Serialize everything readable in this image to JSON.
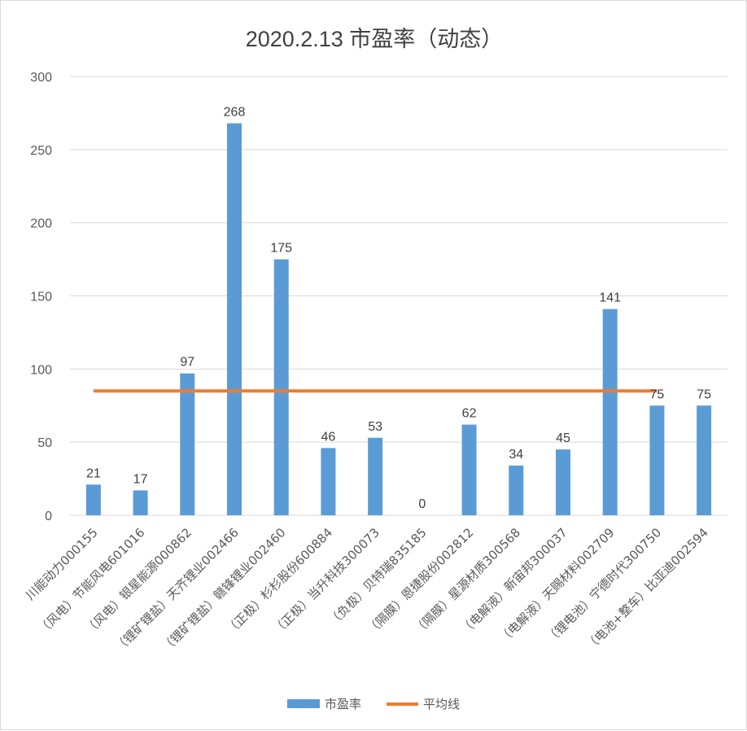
{
  "chart_data": {
    "type": "bar",
    "title": "2020.2.13 市盈率（动态）",
    "categories": [
      "川能动力000155",
      "（风电）节能风电601016",
      "（风电）银星能源000862",
      "（锂矿锂盐）天齐锂业002466",
      "（锂矿锂盐）赣锋锂业002460",
      "（正极）杉杉股份600884",
      "（正极）当升科技300073",
      "（负极）贝特瑞835185",
      "（隔膜）恩捷股份002812",
      "（隔膜）星源材质300568",
      "（电解液）新宙邦300037",
      "（电解液）天赐材料002709",
      "（锂电池）宁德时代300750",
      "（电池+整车）比亚迪002594"
    ],
    "series": [
      {
        "name": "市盈率",
        "type": "bar",
        "color": "#5b9bd5",
        "values": [
          21,
          17,
          97,
          268,
          175,
          46,
          53,
          0,
          62,
          34,
          45,
          141,
          75,
          75
        ],
        "data_labels": [
          "21",
          "17",
          "97",
          "268",
          "175",
          "46",
          "53",
          "0",
          "62",
          "34",
          "45",
          "141",
          "75",
          "75"
        ]
      },
      {
        "name": "平均线",
        "type": "line",
        "color": "#ed7d31",
        "value": 85,
        "x_range": [
          "川能动力000155",
          "（锂电池）宁德时代300750"
        ]
      }
    ],
    "ylim": [
      0,
      300
    ],
    "yticks": [
      "0",
      "50",
      "100",
      "150",
      "200",
      "250",
      "300"
    ],
    "grid": true,
    "legend_position": "bottom"
  }
}
